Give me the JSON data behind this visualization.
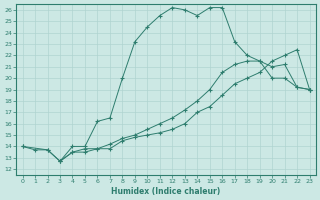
{
  "xlabel": "Humidex (Indice chaleur)",
  "xlim": [
    -0.5,
    23.5
  ],
  "ylim": [
    11.5,
    26.5
  ],
  "xticks": [
    0,
    1,
    2,
    3,
    4,
    5,
    6,
    7,
    8,
    9,
    10,
    11,
    12,
    13,
    14,
    15,
    16,
    17,
    18,
    19,
    20,
    21,
    22,
    23
  ],
  "yticks": [
    12,
    13,
    14,
    15,
    16,
    17,
    18,
    19,
    20,
    21,
    22,
    23,
    24,
    25,
    26
  ],
  "bg_color": "#cce8e4",
  "line_color": "#2e7d6e",
  "grid_color": "#b0d4d0",
  "line1_x": [
    0,
    1,
    2,
    3,
    4,
    5,
    6,
    7,
    8,
    9,
    10,
    11,
    12,
    13,
    14,
    15,
    16,
    17,
    18,
    19,
    20,
    21,
    22,
    23
  ],
  "line1_y": [
    14.0,
    13.7,
    13.7,
    12.7,
    14.0,
    14.0,
    16.2,
    16.5,
    20.0,
    23.2,
    24.5,
    25.5,
    26.2,
    26.0,
    25.5,
    26.2,
    26.2,
    23.2,
    22.0,
    21.5,
    20.0,
    20.0,
    19.2,
    19.0
  ],
  "line2_x": [
    0,
    2,
    3,
    4,
    5,
    6,
    7,
    8,
    9,
    10,
    11,
    12,
    13,
    14,
    15,
    16,
    17,
    18,
    19,
    20,
    21,
    22,
    23
  ],
  "line2_y": [
    14.0,
    13.7,
    12.7,
    13.5,
    13.8,
    13.8,
    14.2,
    14.7,
    15.0,
    15.5,
    16.0,
    16.5,
    17.2,
    18.0,
    19.0,
    20.5,
    21.2,
    21.5,
    21.5,
    21.0,
    21.2,
    19.2,
    19.0
  ],
  "line3_x": [
    3,
    4,
    5,
    6,
    7,
    8,
    9,
    10,
    11,
    12,
    13,
    14,
    15,
    16,
    17,
    18,
    19,
    20,
    21,
    22,
    23
  ],
  "line3_y": [
    12.7,
    13.5,
    13.5,
    13.8,
    13.8,
    14.5,
    14.8,
    15.0,
    15.2,
    15.5,
    16.0,
    17.0,
    17.5,
    18.5,
    19.5,
    20.0,
    20.5,
    21.5,
    22.0,
    22.5,
    19.0
  ]
}
